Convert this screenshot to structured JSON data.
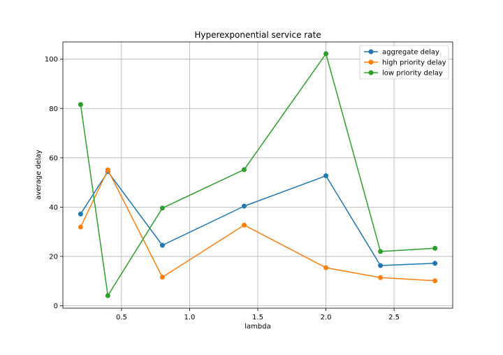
{
  "chart_data": {
    "type": "line",
    "title": "Hyperexponential service rate",
    "xlabel": "lambda",
    "ylabel": "average delay",
    "x": [
      0.2,
      0.4,
      0.8,
      1.4,
      2.0,
      2.4,
      2.8
    ],
    "xlim": [
      0.07,
      2.93
    ],
    "ylim": [
      -1,
      107
    ],
    "xticks": [
      0.5,
      1.0,
      1.5,
      2.0,
      2.5
    ],
    "xtick_labels": [
      "0.5",
      "1.0",
      "1.5",
      "2.0",
      "2.5"
    ],
    "yticks": [
      0,
      20,
      40,
      60,
      80,
      100
    ],
    "ytick_labels": [
      "0",
      "20",
      "40",
      "60",
      "80",
      "100"
    ],
    "grid": true,
    "legend_position": "top-right",
    "series": [
      {
        "name": "aggregate delay",
        "color": "#1f77b4",
        "values": [
          37.2,
          54.4,
          24.5,
          40.4,
          52.7,
          16.3,
          17.2
        ]
      },
      {
        "name": "high priority delay",
        "color": "#ff7f0e",
        "values": [
          31.9,
          55.1,
          11.6,
          32.7,
          15.4,
          11.4,
          10.1
        ]
      },
      {
        "name": "low priority delay",
        "color": "#2ca02c",
        "values": [
          81.6,
          4.1,
          39.6,
          55.2,
          102.2,
          22.0,
          23.3
        ]
      }
    ]
  }
}
